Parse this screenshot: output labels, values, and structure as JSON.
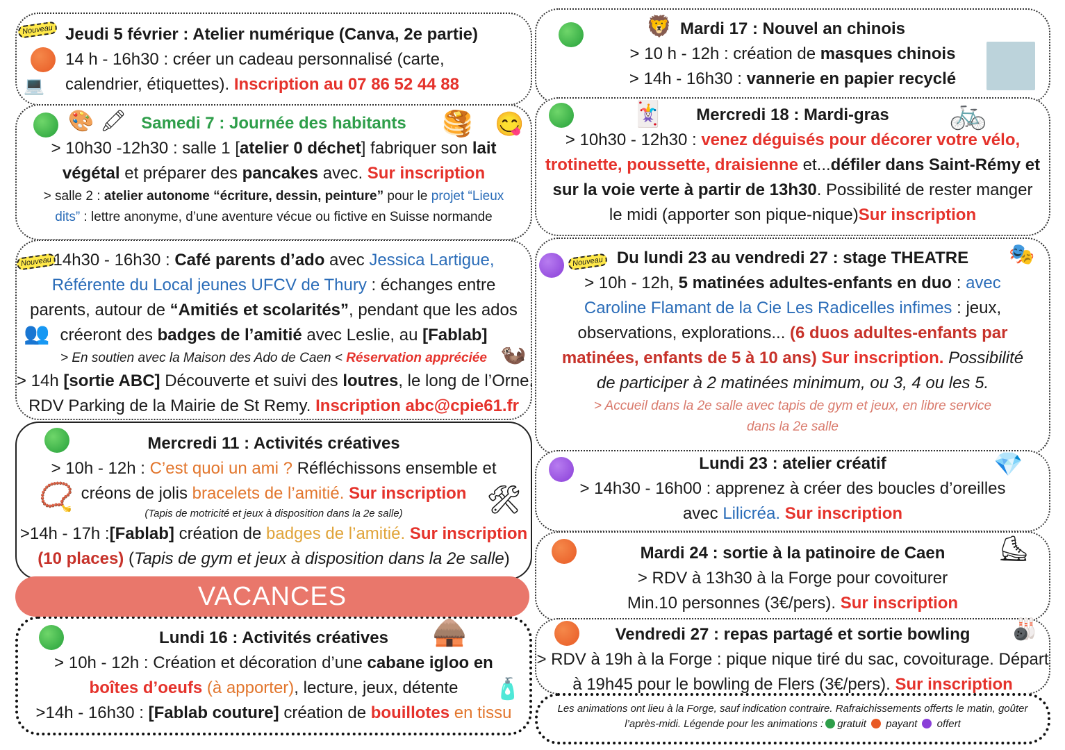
{
  "colors": {
    "gratuit": "#2e9e4a",
    "payant": "#e85a25",
    "offert": "#8a3fd8",
    "accent_red": "#e5322b",
    "link_blue": "#2a6cb8",
    "vacances_bar": "#e9776b"
  },
  "badge_label": "Nouveau",
  "vacances_label": "VACANCES",
  "boxes": [
    {
      "id": "jeudi-5",
      "dot": "orange",
      "lines": [
        {
          "segs": [
            {
              "s": "b",
              "t": "Jeudi 5 février : Atelier numérique (Canva, 2e partie)"
            }
          ]
        },
        {
          "segs": [
            {
              "s": "n",
              "t": "14 h - 16h30 : créer un cadeau personnalisé (carte,"
            }
          ]
        },
        {
          "segs": [
            {
              "s": "n",
              "t": "calendrier, étiquettes). "
            },
            {
              "s": "r",
              "t": "Inscription au 07 86 52 44 88"
            }
          ]
        }
      ]
    },
    {
      "id": "samedi-7",
      "dot": "green",
      "lines": [
        {
          "segs": [
            {
              "s": "g",
              "t": "Samedi 7 : Journée des habitants"
            }
          ]
        },
        {
          "segs": [
            {
              "s": "n",
              "t": "> 10h30 -12h30 : salle 1 ["
            },
            {
              "s": "b",
              "t": "atelier 0 déchet"
            },
            {
              "s": "n",
              "t": "] fabriquer son "
            },
            {
              "s": "b",
              "t": "lait"
            }
          ]
        },
        {
          "segs": [
            {
              "s": "b",
              "t": "végétal"
            },
            {
              "s": "n",
              "t": " et préparer des "
            },
            {
              "s": "b",
              "t": "pancakes"
            },
            {
              "s": "n",
              "t": " avec. "
            },
            {
              "s": "r",
              "t": "Sur inscription"
            }
          ]
        },
        {
          "variant": "small",
          "segs": [
            {
              "s": "n",
              "t": "> salle 2 : "
            },
            {
              "s": "b",
              "t": "atelier autonome “écriture, dessin, peinture”"
            },
            {
              "s": "n",
              "t": " pour le "
            },
            {
              "s": "bl",
              "t": "projet “Lieux"
            }
          ]
        },
        {
          "variant": "small",
          "segs": [
            {
              "s": "bl",
              "t": "dits”"
            },
            {
              "s": "n",
              "t": " : lettre anonyme, d’une aventure vécue ou fictive en Suisse normande"
            }
          ]
        }
      ]
    },
    {
      "id": "cafe-parents",
      "dot": "",
      "lines": [
        {
          "segs": [
            {
              "s": "n",
              "t": "14h30 - 16h30 : "
            },
            {
              "s": "b",
              "t": "Café parents d’ado"
            },
            {
              "s": "n",
              "t": " avec "
            },
            {
              "s": "bl",
              "t": "Jessica Lartigue,"
            }
          ]
        },
        {
          "segs": [
            {
              "s": "bl",
              "t": "Référente du Local jeunes UFCV de Thury"
            },
            {
              "s": "n",
              "t": " : échanges entre"
            }
          ]
        },
        {
          "segs": [
            {
              "s": "n",
              "t": "parents, autour de "
            },
            {
              "s": "b",
              "t": "“Amitiés et scolarités”"
            },
            {
              "s": "n",
              "t": ", pendant que les ados"
            }
          ]
        },
        {
          "segs": [
            {
              "s": "n",
              "t": "créeront des "
            },
            {
              "s": "b",
              "t": "badges de l’amitié"
            },
            {
              "s": "n",
              "t": " avec Leslie, au "
            },
            {
              "s": "b",
              "t": "[Fablab]"
            }
          ]
        },
        {
          "variant": "small",
          "segs": [
            {
              "s": "i",
              "t": "> En soutien avec la Maison des Ado de Caen < "
            },
            {
              "s": "ri",
              "t": "Réservation appréciée"
            }
          ]
        },
        {
          "segs": [
            {
              "s": "n",
              "t": "> 14h "
            },
            {
              "s": "b",
              "t": "[sortie ABC]"
            },
            {
              "s": "n",
              "t": " Découverte et suivi des "
            },
            {
              "s": "b",
              "t": "loutres"
            },
            {
              "s": "n",
              "t": ", le long de l’Orne."
            }
          ]
        },
        {
          "segs": [
            {
              "s": "n",
              "t": "RDV Parking de la Mairie de St Remy. "
            },
            {
              "s": "r",
              "t": "Inscription abc@cpie61.fr"
            }
          ]
        }
      ]
    },
    {
      "id": "mercredi-11",
      "dot": "green",
      "lines": [
        {
          "segs": [
            {
              "s": "b",
              "t": "Mercredi 11 : Activités créatives"
            }
          ]
        },
        {
          "segs": [
            {
              "s": "n",
              "t": "> 10h - 12h : "
            },
            {
              "s": "o",
              "t": "C’est quoi un ami ?"
            },
            {
              "s": "n",
              "t": " Réfléchissons ensemble et"
            }
          ]
        },
        {
          "segs": [
            {
              "s": "n",
              "t": "créons de jolis "
            },
            {
              "s": "o",
              "t": "bracelets de l’amitié."
            },
            {
              "s": "n",
              "t": " "
            },
            {
              "s": "r",
              "t": "Sur inscription"
            }
          ]
        },
        {
          "variant": "tiny",
          "segs": [
            {
              "s": "i",
              "t": "(Tapis de motricité et jeux à disposition dans la 2e salle)"
            }
          ]
        },
        {
          "segs": [
            {
              "s": "n",
              "t": ">14h - 17h :"
            },
            {
              "s": "b",
              "t": "[Fablab]"
            },
            {
              "s": "n",
              "t": " création de "
            },
            {
              "s": "y",
              "t": "badges de l’amitié."
            },
            {
              "s": "n",
              "t": "  "
            },
            {
              "s": "r",
              "t": "Sur inscription"
            }
          ]
        },
        {
          "segs": [
            {
              "s": "dr",
              "t": "(10 places)"
            },
            {
              "s": "n",
              "t": " ("
            },
            {
              "s": "i",
              "t": "Tapis de gym et jeux à disposition dans la 2e salle"
            },
            {
              "s": "n",
              "t": ")"
            }
          ]
        }
      ]
    },
    {
      "id": "lundi-16",
      "dot": "green",
      "lines": [
        {
          "segs": [
            {
              "s": "b",
              "t": "Lundi 16 : Activités créatives"
            }
          ]
        },
        {
          "segs": [
            {
              "s": "n",
              "t": "> 10h - 12h : Création et décoration d’une "
            },
            {
              "s": "b",
              "t": "cabane igloo en"
            }
          ]
        },
        {
          "segs": [
            {
              "s": "r",
              "t": "boîtes d’oeufs"
            },
            {
              "s": "o",
              "t": " (à apporter)"
            },
            {
              "s": "n",
              "t": ", lecture, jeux, détente"
            }
          ]
        },
        {
          "segs": [
            {
              "s": "n",
              "t": ">14h - 16h30 : "
            },
            {
              "s": "b",
              "t": "[Fablab couture]"
            },
            {
              "s": "n",
              "t": " création de "
            },
            {
              "s": "r",
              "t": "bouillotes"
            },
            {
              "s": "o",
              "t": " en tissu"
            }
          ]
        }
      ]
    },
    {
      "id": "mardi-17",
      "dot": "green",
      "lines": [
        {
          "segs": [
            {
              "s": "b",
              "t": "Mardi 17 : Nouvel an chinois"
            }
          ]
        },
        {
          "segs": [
            {
              "s": "n",
              "t": "> 10 h - 12h : création de "
            },
            {
              "s": "b",
              "t": "masques chinois"
            }
          ]
        },
        {
          "segs": [
            {
              "s": "n",
              "t": "> 14h - 16h30 : "
            },
            {
              "s": "b",
              "t": "vannerie en papier recyclé"
            }
          ]
        }
      ]
    },
    {
      "id": "mercredi-18",
      "dot": "green",
      "lines": [
        {
          "segs": [
            {
              "s": "b",
              "t": "Mercredi 18 : Mardi-gras"
            }
          ]
        },
        {
          "segs": [
            {
              "s": "n",
              "t": "> 10h30 - 12h30 : "
            },
            {
              "s": "r",
              "t": "venez déguisés pour décorer votre vélo,"
            }
          ]
        },
        {
          "segs": [
            {
              "s": "r",
              "t": "trotinette, poussette, draisienne"
            },
            {
              "s": "n",
              "t": " et..."
            },
            {
              "s": "b",
              "t": "défiler dans Saint-Rémy et"
            }
          ]
        },
        {
          "segs": [
            {
              "s": "b",
              "t": "sur la voie verte à partir de 13h30"
            },
            {
              "s": "n",
              "t": ". Possibilité de rester manger"
            }
          ]
        },
        {
          "segs": [
            {
              "s": "n",
              "t": "le midi (apporter son pique-nique)"
            },
            {
              "s": "r",
              "t": "Sur inscription"
            }
          ]
        }
      ]
    },
    {
      "id": "stage-theatre",
      "dot": "purple",
      "lines": [
        {
          "segs": [
            {
              "s": "b",
              "t": "Du lundi 23 au vendredi 27 : stage THEATRE"
            }
          ]
        },
        {
          "segs": [
            {
              "s": "n",
              "t": "> 10h - 12h, "
            },
            {
              "s": "b",
              "t": "5 matinées adultes-enfants en duo"
            },
            {
              "s": "n",
              "t": " : "
            },
            {
              "s": "bl",
              "t": "avec"
            }
          ]
        },
        {
          "segs": [
            {
              "s": "bl",
              "t": "Caroline Flamant de la Cie Les Radicelles infimes"
            },
            {
              "s": "n",
              "t": " : jeux,"
            }
          ]
        },
        {
          "segs": [
            {
              "s": "n",
              "t": "observations, explorations... "
            },
            {
              "s": "dr",
              "t": "(6 duos adultes-enfants par"
            }
          ]
        },
        {
          "segs": [
            {
              "s": "dr",
              "t": "matinées, enfants de 5 à 10 ans)"
            },
            {
              "s": "n",
              "t": " "
            },
            {
              "s": "r",
              "t": "Sur inscription."
            },
            {
              "s": "n",
              "t": " "
            },
            {
              "s": "i",
              "t": "Possibilité"
            }
          ]
        },
        {
          "segs": [
            {
              "s": "i",
              "t": "de participer à 2 matinées minimum, ou 3, 4 ou les 5."
            }
          ]
        },
        {
          "variant": "small",
          "segs": [
            {
              "s": "s",
              "t": "> Accueil dans la 2e salle avec tapis de gym et jeux, en libre service"
            }
          ]
        },
        {
          "variant": "small",
          "segs": [
            {
              "s": "s",
              "t": "dans la 2e salle"
            }
          ]
        }
      ]
    },
    {
      "id": "lundi-23",
      "dot": "purple",
      "lines": [
        {
          "segs": [
            {
              "s": "b",
              "t": "Lundi 23 : atelier créatif"
            }
          ]
        },
        {
          "segs": [
            {
              "s": "n",
              "t": "> 14h30 - 16h00 : apprenez à créer des boucles d’oreilles"
            }
          ]
        },
        {
          "segs": [
            {
              "s": "n",
              "t": "avec "
            },
            {
              "s": "bl",
              "t": "Lilicréa."
            },
            {
              "s": "n",
              "t": " "
            },
            {
              "s": "r",
              "t": "Sur inscription"
            }
          ]
        }
      ]
    },
    {
      "id": "mardi-24",
      "dot": "orange",
      "lines": [
        {
          "segs": [
            {
              "s": "b",
              "t": "Mardi 24 : sortie à la patinoire de Caen"
            }
          ]
        },
        {
          "segs": [
            {
              "s": "n",
              "t": "> RDV à 13h30 à la Forge pour covoiturer"
            }
          ]
        },
        {
          "segs": [
            {
              "s": "n",
              "t": "Min.10 personnes (3€/pers). "
            },
            {
              "s": "r",
              "t": "Sur inscription"
            }
          ]
        }
      ]
    },
    {
      "id": "vendredi-27",
      "dot": "orange",
      "lines": [
        {
          "segs": [
            {
              "s": "b",
              "t": "Vendredi 27 : repas partagé et sortie bowling"
            }
          ]
        },
        {
          "segs": [
            {
              "s": "n",
              "t": "> RDV à 19h à la Forge : pique nique tiré du sac, covoiturage. Départ"
            }
          ]
        },
        {
          "segs": [
            {
              "s": "n",
              "t": "à 19h45 pour le bowling de Flers (3€/pers). "
            },
            {
              "s": "r",
              "t": "Sur inscription"
            }
          ]
        }
      ]
    },
    {
      "id": "footer",
      "dot": "",
      "lines": [
        {
          "variant": "tiny",
          "segs": [
            {
              "s": "i",
              "t": "Les animations ont lieu à la Forge, sauf indication contraire.  Rafraichissements offerts le matin, goûter"
            }
          ]
        },
        {
          "variant": "tiny",
          "segs": [
            {
              "s": "i",
              "t": "l’après-midi. Légende pour les animations :"
            },
            {
              "s": "legend-green",
              "t": ""
            },
            {
              "s": "i",
              "t": "gratuit "
            },
            {
              "s": "legend-orange",
              "t": ""
            },
            {
              "s": "i",
              "t": " payant "
            },
            {
              "s": "legend-purple",
              "t": ""
            },
            {
              "s": "i",
              "t": " offert"
            }
          ]
        }
      ]
    }
  ],
  "icons": [
    "nouveau-badge",
    "palette-icon",
    "pencils-icon",
    "pancakes-icon",
    "smiley-icon",
    "computer-icon",
    "friends-circle-icon",
    "otter-icon",
    "bracelet-icon",
    "badge-press-icon",
    "igloo-icon",
    "hot-water-bottle-icon",
    "lion-mask-icon",
    "weaving-photo",
    "jester-hat-icon",
    "bicycle-icon",
    "theatre-masks-icon",
    "earrings-icon",
    "ice-skates-icon",
    "bowling-icon"
  ]
}
